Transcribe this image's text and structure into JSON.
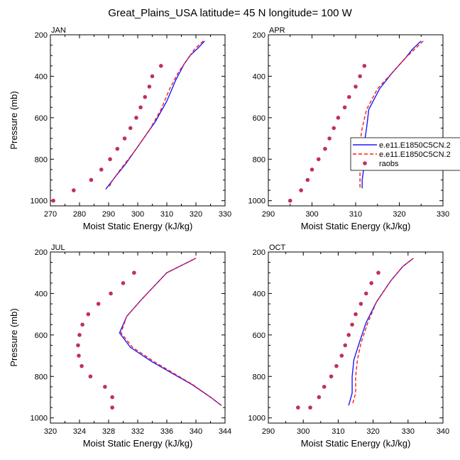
{
  "figure_title": "Great_Plains_USA  latitude= 45 N longitude= 100 W",
  "colors": {
    "model1": "#1a1aff",
    "model2": "#ff1a1a",
    "obs": "#c0305a"
  },
  "legend": {
    "entries": [
      {
        "label": "e.e11.E1850C5CN.2",
        "style": "solid",
        "color": "#1a1aff"
      },
      {
        "label": "e.e11.E1850C5CN.2",
        "style": "dashed",
        "color": "#ff1a1a"
      },
      {
        "label": "raobs",
        "style": "marker",
        "color": "#c0305a"
      }
    ]
  },
  "chart_data": [
    {
      "type": "line",
      "title": "JAN",
      "xlabel": "Moist Static Energy (kJ/kg)",
      "ylabel": "Pressure (mb)",
      "xlim": [
        270,
        330
      ],
      "xticks": [
        "270",
        "280",
        "290",
        "300",
        "310",
        "320",
        "330"
      ],
      "ylim": [
        200,
        1025
      ],
      "yreversed": true,
      "yticks": [
        "200",
        "400",
        "600",
        "800",
        "1000"
      ],
      "series": [
        {
          "name": "e.e11.E1850C5CN.2",
          "style": "solid",
          "color": "#1a1aff",
          "x": [
            323,
            321,
            318,
            316,
            313,
            310,
            306,
            301,
            296,
            292,
            289
          ],
          "y": [
            230,
            260,
            300,
            340,
            420,
            520,
            620,
            720,
            820,
            890,
            945
          ]
        },
        {
          "name": "e.e11.E1850C5CN.2",
          "style": "dashed",
          "color": "#ff1a1a",
          "x": [
            322.5,
            319.5,
            317,
            314,
            311,
            308,
            304,
            299,
            294,
            291,
            290
          ],
          "y": [
            230,
            270,
            320,
            380,
            460,
            560,
            660,
            760,
            850,
            910,
            940
          ]
        },
        {
          "name": "raobs",
          "style": "marker",
          "color": "#c0305a",
          "x": [
            308,
            305,
            304,
            302.5,
            301,
            299.5,
            297.5,
            295.5,
            293,
            290.5,
            287.5,
            284,
            278,
            271
          ],
          "y": [
            350,
            400,
            450,
            500,
            550,
            600,
            650,
            700,
            750,
            800,
            850,
            900,
            950,
            1000
          ]
        }
      ]
    },
    {
      "type": "line",
      "title": "APR",
      "xlabel": "Moist Static Energy (kJ/kg)",
      "ylabel": "",
      "xlim": [
        290,
        330
      ],
      "xticks": [
        "290",
        "300",
        "310",
        "320",
        "330"
      ],
      "ylim": [
        200,
        1025
      ],
      "yreversed": true,
      "yticks": [
        "200",
        "400",
        "600",
        "800",
        "1000"
      ],
      "series": [
        {
          "name": "e.e11.E1850C5CN.2",
          "style": "solid",
          "color": "#1a1aff",
          "x": [
            325,
            323,
            321.5,
            318.5,
            315.5,
            313,
            312.5,
            312,
            312,
            311.5,
            311.5
          ],
          "y": [
            230,
            270,
            310,
            380,
            460,
            560,
            650,
            720,
            820,
            900,
            940
          ]
        },
        {
          "name": "e.e11.E1850C5CN.2",
          "style": "dashed",
          "color": "#ff1a1a",
          "x": [
            325.5,
            323.5,
            321.5,
            318.5,
            315,
            312.5,
            311.5,
            311,
            311,
            311,
            311
          ],
          "y": [
            230,
            270,
            310,
            380,
            460,
            560,
            650,
            720,
            820,
            900,
            940
          ]
        },
        {
          "name": "raobs",
          "style": "marker",
          "color": "#c0305a",
          "x": [
            312,
            311,
            310,
            308.5,
            307.5,
            306,
            305,
            304,
            303,
            301.5,
            300,
            299,
            297.5,
            295
          ],
          "y": [
            350,
            400,
            450,
            500,
            550,
            600,
            650,
            700,
            750,
            800,
            850,
            900,
            950,
            1000
          ]
        }
      ]
    },
    {
      "type": "line",
      "title": "JUL",
      "xlabel": "Moist Static Energy (kJ/kg)",
      "ylabel": "Pressure (mb)",
      "xlim": [
        320,
        344
      ],
      "xticks": [
        "320",
        "324",
        "328",
        "332",
        "336",
        "340",
        "344"
      ],
      "ylim": [
        200,
        1025
      ],
      "yreversed": true,
      "yticks": [
        "200",
        "400",
        "600",
        "800",
        "1000"
      ],
      "series": [
        {
          "name": "e.e11.E1850C5CN.2",
          "style": "solid",
          "color": "#1a1aff",
          "x": [
            340,
            336,
            332.5,
            330.5,
            329.5,
            331,
            334,
            337,
            339.5,
            342,
            343.5
          ],
          "y": [
            230,
            300,
            430,
            510,
            590,
            660,
            730,
            790,
            840,
            900,
            940
          ]
        },
        {
          "name": "e.e11.E1850C5CN.2",
          "style": "dashed",
          "color": "#ff1a1a",
          "x": [
            340,
            336,
            332.5,
            330.5,
            329.7,
            331.3,
            334.3,
            337.2,
            339.6,
            342,
            343.5
          ],
          "y": [
            230,
            300,
            430,
            510,
            590,
            660,
            730,
            790,
            840,
            900,
            940
          ]
        },
        {
          "name": "raobs",
          "style": "marker",
          "color": "#c0305a",
          "x": [
            331.5,
            330,
            328.3,
            326.6,
            325.2,
            324.4,
            324,
            323.8,
            323.9,
            324.3,
            325.5,
            327.5,
            328.5,
            328.5
          ],
          "y": [
            300,
            350,
            400,
            450,
            500,
            550,
            600,
            650,
            700,
            750,
            800,
            850,
            900,
            950
          ]
        }
      ]
    },
    {
      "type": "line",
      "title": "OCT",
      "xlabel": "Moist Static Energy (kJ/kg)",
      "ylabel": "",
      "xlim": [
        290,
        340
      ],
      "xticks": [
        "290",
        "300",
        "310",
        "320",
        "330",
        "340"
      ],
      "ylim": [
        200,
        1025
      ],
      "yreversed": true,
      "yticks": [
        "200",
        "400",
        "600",
        "800",
        "1000"
      ],
      "series": [
        {
          "name": "e.e11.E1850C5CN.2",
          "style": "solid",
          "color": "#1a1aff",
          "x": [
            331.5,
            328.5,
            325,
            321,
            318,
            316,
            314.5,
            314,
            314,
            313
          ],
          "y": [
            230,
            270,
            340,
            440,
            540,
            640,
            720,
            800,
            880,
            940
          ]
        },
        {
          "name": "e.e11.E1850C5CN.2",
          "style": "dashed",
          "color": "#ff1a1a",
          "x": [
            331.5,
            328.5,
            325,
            321,
            318.5,
            316.5,
            315.5,
            315,
            315,
            314
          ],
          "y": [
            230,
            270,
            340,
            440,
            540,
            640,
            720,
            800,
            880,
            940
          ]
        },
        {
          "name": "raobs",
          "style": "marker",
          "color": "#c0305a",
          "x": [
            321.5,
            319.5,
            318,
            316.5,
            315,
            314,
            313,
            312,
            311,
            309.5,
            308,
            306,
            304.5,
            302,
            298.5
          ],
          "y": [
            300,
            350,
            400,
            450,
            500,
            550,
            600,
            650,
            700,
            750,
            800,
            850,
            900,
            950,
            950
          ]
        }
      ]
    }
  ]
}
